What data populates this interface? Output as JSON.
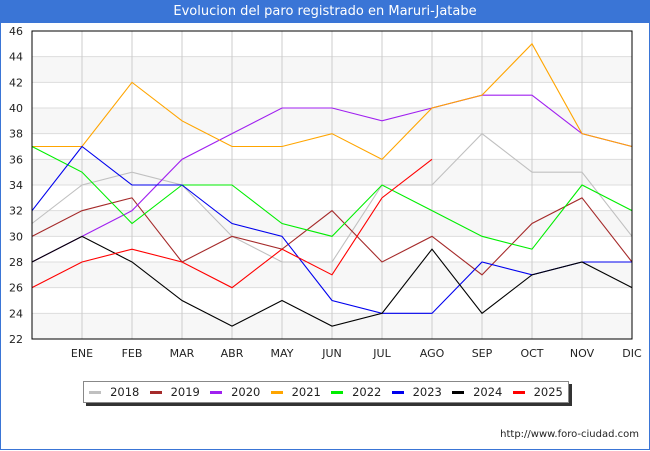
{
  "header": {
    "title": "Evolucion del paro registrado en Maruri-Jatabe"
  },
  "footer": {
    "url": "http://www.foro-ciudad.com"
  },
  "chart_data": {
    "type": "line",
    "title": "Evolucion del paro registrado en Maruri-Jatabe",
    "xlabel": "",
    "ylabel": "",
    "x": [
      "",
      "ENE",
      "FEB",
      "MAR",
      "ABR",
      "MAY",
      "JUN",
      "JUL",
      "AGO",
      "SEP",
      "OCT",
      "NOV",
      "DIC"
    ],
    "ylim": [
      22,
      46
    ],
    "yticks": [
      22,
      24,
      26,
      28,
      30,
      32,
      34,
      36,
      38,
      40,
      42,
      44,
      46
    ],
    "grid": true,
    "legend_position": "bottom",
    "series": [
      {
        "name": "2018",
        "color": "#c0c0c0",
        "values": [
          31,
          34,
          35,
          34,
          30,
          28,
          28,
          34,
          34,
          38,
          35,
          35,
          30
        ]
      },
      {
        "name": "2019",
        "color": "#a52a2a",
        "values": [
          30,
          32,
          33,
          28,
          30,
          29,
          32,
          28,
          30,
          27,
          31,
          33,
          28
        ]
      },
      {
        "name": "2020",
        "color": "#a020f0",
        "values": [
          28,
          30,
          32,
          36,
          38,
          40,
          40,
          39,
          40,
          41,
          41,
          38,
          37
        ]
      },
      {
        "name": "2021",
        "color": "#ffa500",
        "values": [
          37,
          37,
          42,
          39,
          37,
          37,
          38,
          36,
          40,
          41,
          45,
          38,
          37
        ]
      },
      {
        "name": "2022",
        "color": "#00ee00",
        "values": [
          37,
          35,
          31,
          34,
          34,
          31,
          30,
          34,
          32,
          30,
          29,
          34,
          32
        ]
      },
      {
        "name": "2023",
        "color": "#0000ee",
        "values": [
          32,
          37,
          34,
          34,
          31,
          30,
          25,
          24,
          24,
          28,
          27,
          28,
          28
        ]
      },
      {
        "name": "2024",
        "color": "#000000",
        "values": [
          28,
          30,
          28,
          25,
          23,
          25,
          23,
          24,
          29,
          24,
          27,
          28,
          26
        ]
      },
      {
        "name": "2025",
        "color": "#ff0000",
        "values": [
          26,
          28,
          29,
          28,
          26,
          29,
          27,
          33,
          36
        ]
      }
    ]
  }
}
